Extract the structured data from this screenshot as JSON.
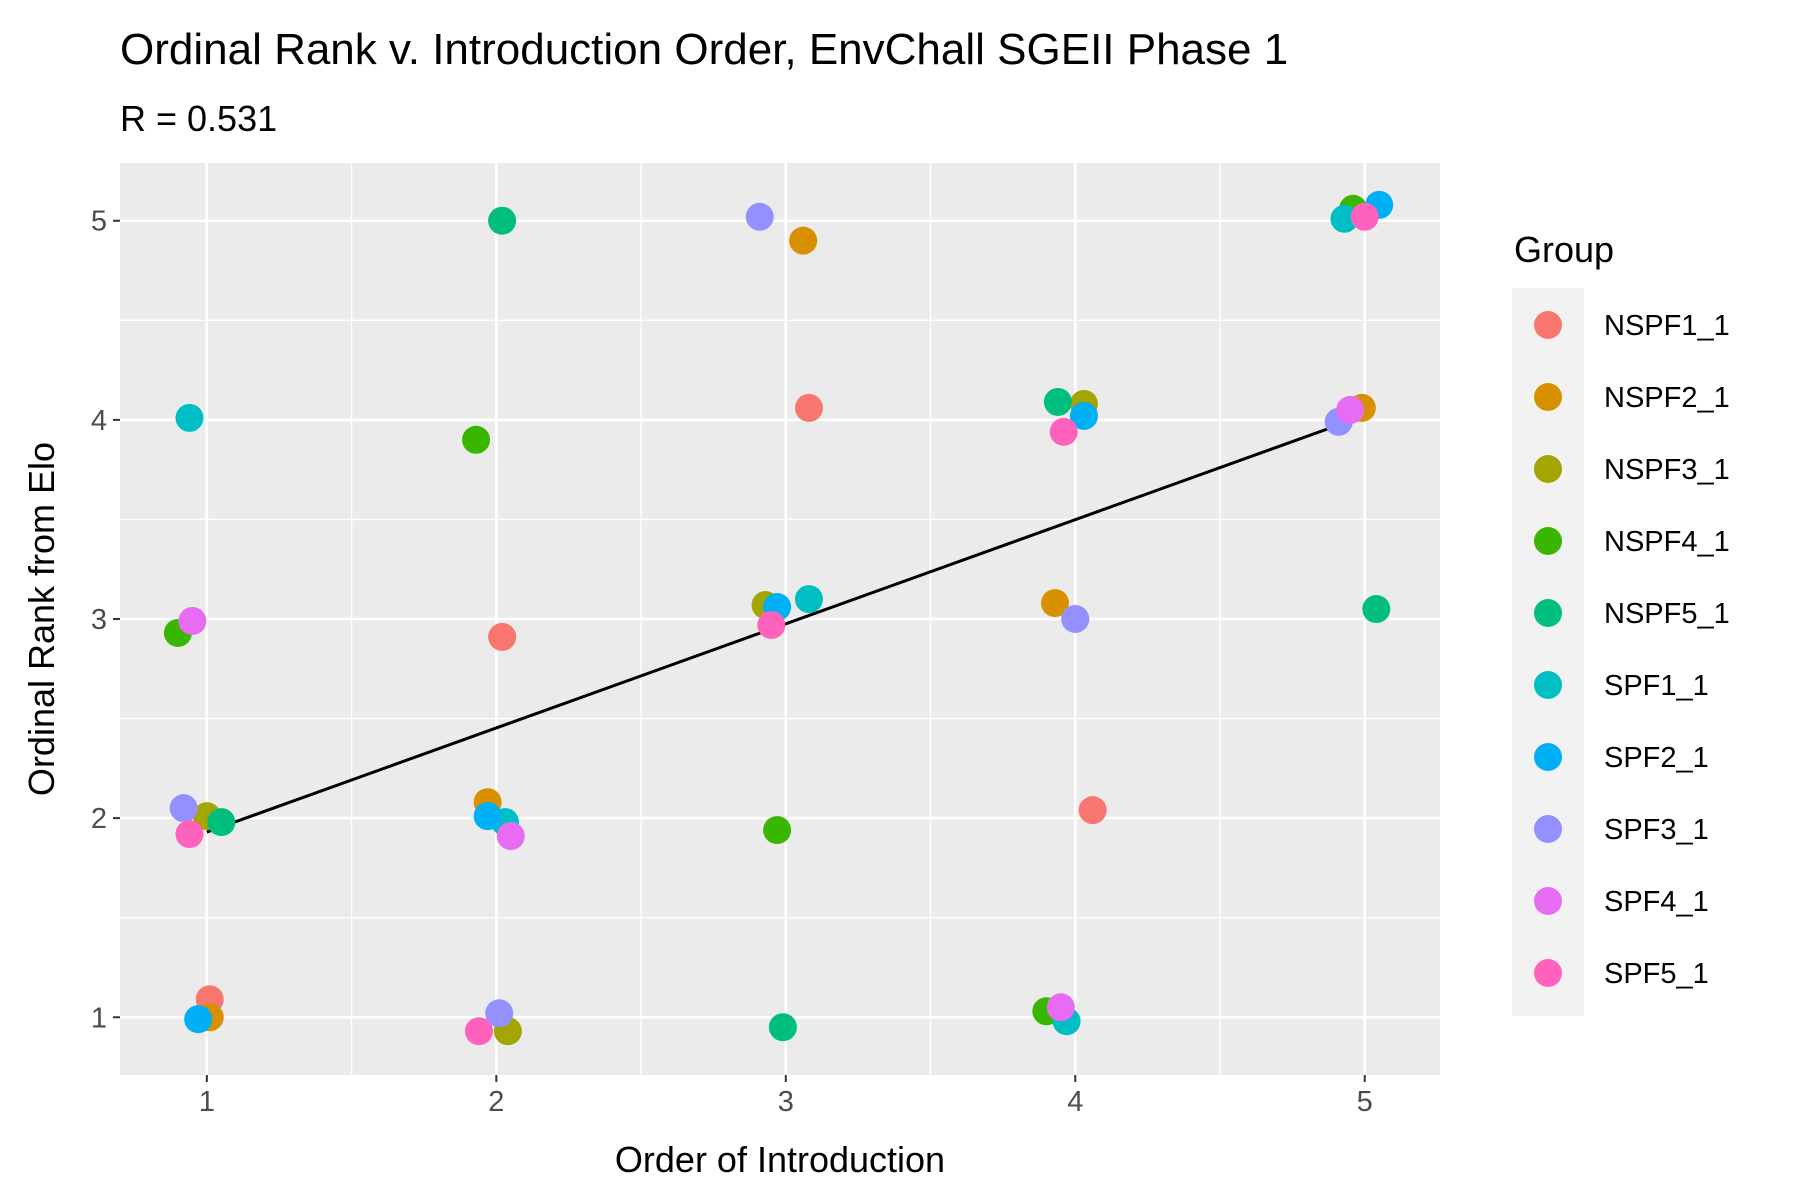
{
  "chart_data": {
    "type": "scatter",
    "title": "Ordinal Rank v. Introduction Order, EnvChall SGEII Phase 1",
    "subtitle": "R = 0.531",
    "xlabel": "Order of Introduction",
    "ylabel": "Ordinal Rank from Elo",
    "xlim": [
      0.7,
      5.26
    ],
    "ylim": [
      0.71,
      5.29
    ],
    "xticks": [
      "1",
      "2",
      "3",
      "4",
      "5"
    ],
    "yticks": [
      "1",
      "2",
      "3",
      "4",
      "5"
    ],
    "grid": true,
    "legend_title": "Group",
    "legend_position": "right",
    "fit_line": {
      "x": [
        1,
        4.92
      ],
      "y": [
        1.93,
        3.98
      ]
    },
    "series": [
      {
        "name": "NSPF1_1",
        "color": "#F8766D",
        "points": [
          [
            1.01,
            1.09
          ],
          [
            2.02,
            2.91
          ],
          [
            3.08,
            4.06
          ],
          [
            4.06,
            2.04
          ]
        ]
      },
      {
        "name": "NSPF2_1",
        "color": "#D89000",
        "points": [
          [
            1.01,
            1.0
          ],
          [
            1.97,
            2.08
          ],
          [
            3.06,
            4.9
          ],
          [
            3.93,
            3.08
          ],
          [
            4.99,
            4.06
          ]
        ]
      },
      {
        "name": "NSPF3_1",
        "color": "#A3A500",
        "points": [
          [
            1.0,
            2.01
          ],
          [
            2.04,
            0.93
          ],
          [
            2.93,
            3.07
          ],
          [
            4.03,
            4.08
          ]
        ]
      },
      {
        "name": "NSPF4_1",
        "color": "#39B600",
        "points": [
          [
            0.9,
            2.93
          ],
          [
            1.93,
            3.9
          ],
          [
            2.97,
            1.94
          ],
          [
            3.9,
            1.03
          ],
          [
            4.96,
            5.06
          ]
        ]
      },
      {
        "name": "NSPF5_1",
        "color": "#00BF7D",
        "points": [
          [
            1.05,
            1.98
          ],
          [
            2.02,
            5.0
          ],
          [
            2.99,
            0.95
          ],
          [
            3.94,
            4.09
          ],
          [
            5.04,
            3.05
          ]
        ]
      },
      {
        "name": "SPF1_1",
        "color": "#00BFC4",
        "points": [
          [
            0.94,
            4.01
          ],
          [
            2.03,
            1.98
          ],
          [
            3.08,
            3.1
          ],
          [
            3.97,
            0.98
          ],
          [
            4.93,
            5.01
          ]
        ]
      },
      {
        "name": "SPF2_1",
        "color": "#00B0F6",
        "points": [
          [
            0.97,
            0.99
          ],
          [
            1.97,
            2.01
          ],
          [
            2.97,
            3.06
          ],
          [
            4.03,
            4.02
          ],
          [
            5.05,
            5.08
          ]
        ]
      },
      {
        "name": "SPF3_1",
        "color": "#9590FF",
        "points": [
          [
            0.92,
            2.05
          ],
          [
            2.01,
            1.02
          ],
          [
            2.91,
            5.02
          ],
          [
            4.0,
            3.0
          ],
          [
            4.91,
            3.99
          ]
        ]
      },
      {
        "name": "SPF4_1",
        "color": "#E76BF3",
        "points": [
          [
            0.95,
            2.99
          ],
          [
            2.05,
            1.91
          ],
          [
            3.95,
            1.05
          ],
          [
            4.95,
            4.05
          ]
        ]
      },
      {
        "name": "SPF5_1",
        "color": "#FF62BC",
        "points": [
          [
            0.94,
            1.92
          ],
          [
            1.94,
            0.93
          ],
          [
            2.95,
            2.97
          ],
          [
            3.96,
            3.94
          ],
          [
            5.0,
            5.02
          ]
        ]
      }
    ]
  }
}
